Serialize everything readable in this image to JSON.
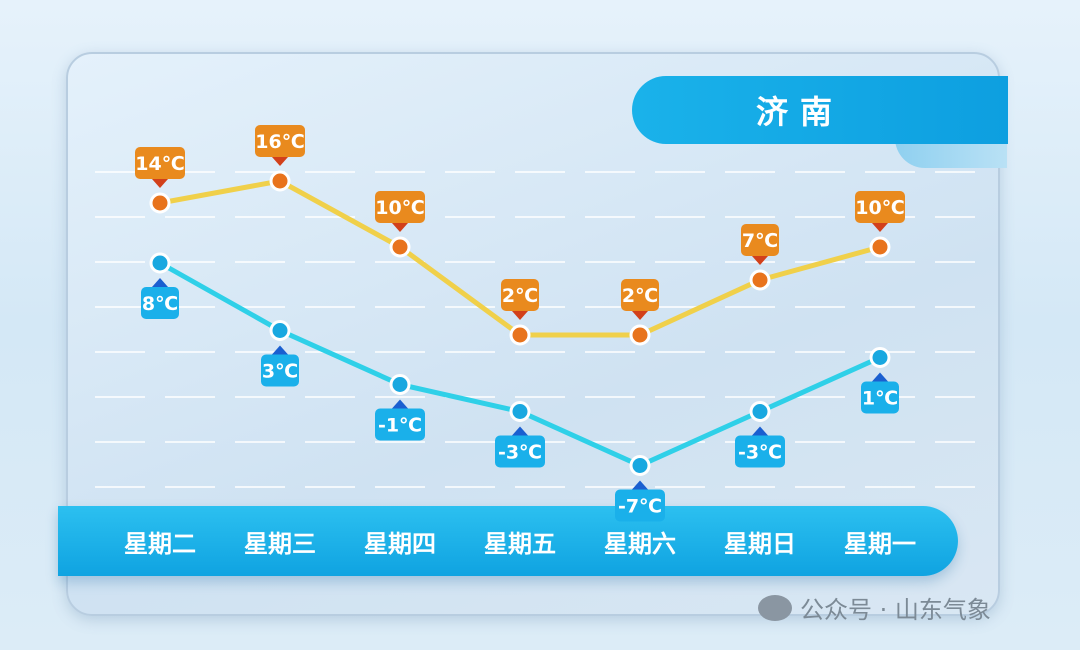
{
  "city": "济南",
  "watermark": "公众号 · 山东气象",
  "colors": {
    "high": "#f0d04a",
    "high_label": "#e98a1e",
    "low": "#2fd0e8",
    "low_label": "#1ab0ea"
  },
  "chart_data": {
    "type": "line",
    "categories": [
      "星期二",
      "星期三",
      "星期四",
      "星期五",
      "星期六",
      "星期日",
      "星期一"
    ],
    "series": [
      {
        "values": [
          14,
          16,
          10,
          2,
          2,
          7,
          10
        ],
        "labels": [
          "14℃",
          "16℃",
          "10℃",
          "2℃",
          "2℃",
          "7℃",
          "10℃"
        ]
      },
      {
        "values": [
          8,
          3,
          -1,
          -3,
          -7,
          -3,
          1
        ],
        "labels": [
          "8℃",
          "3℃",
          "-1℃",
          "-3℃",
          "-7℃",
          "-3℃",
          "1℃"
        ]
      }
    ],
    "grid": true
  }
}
